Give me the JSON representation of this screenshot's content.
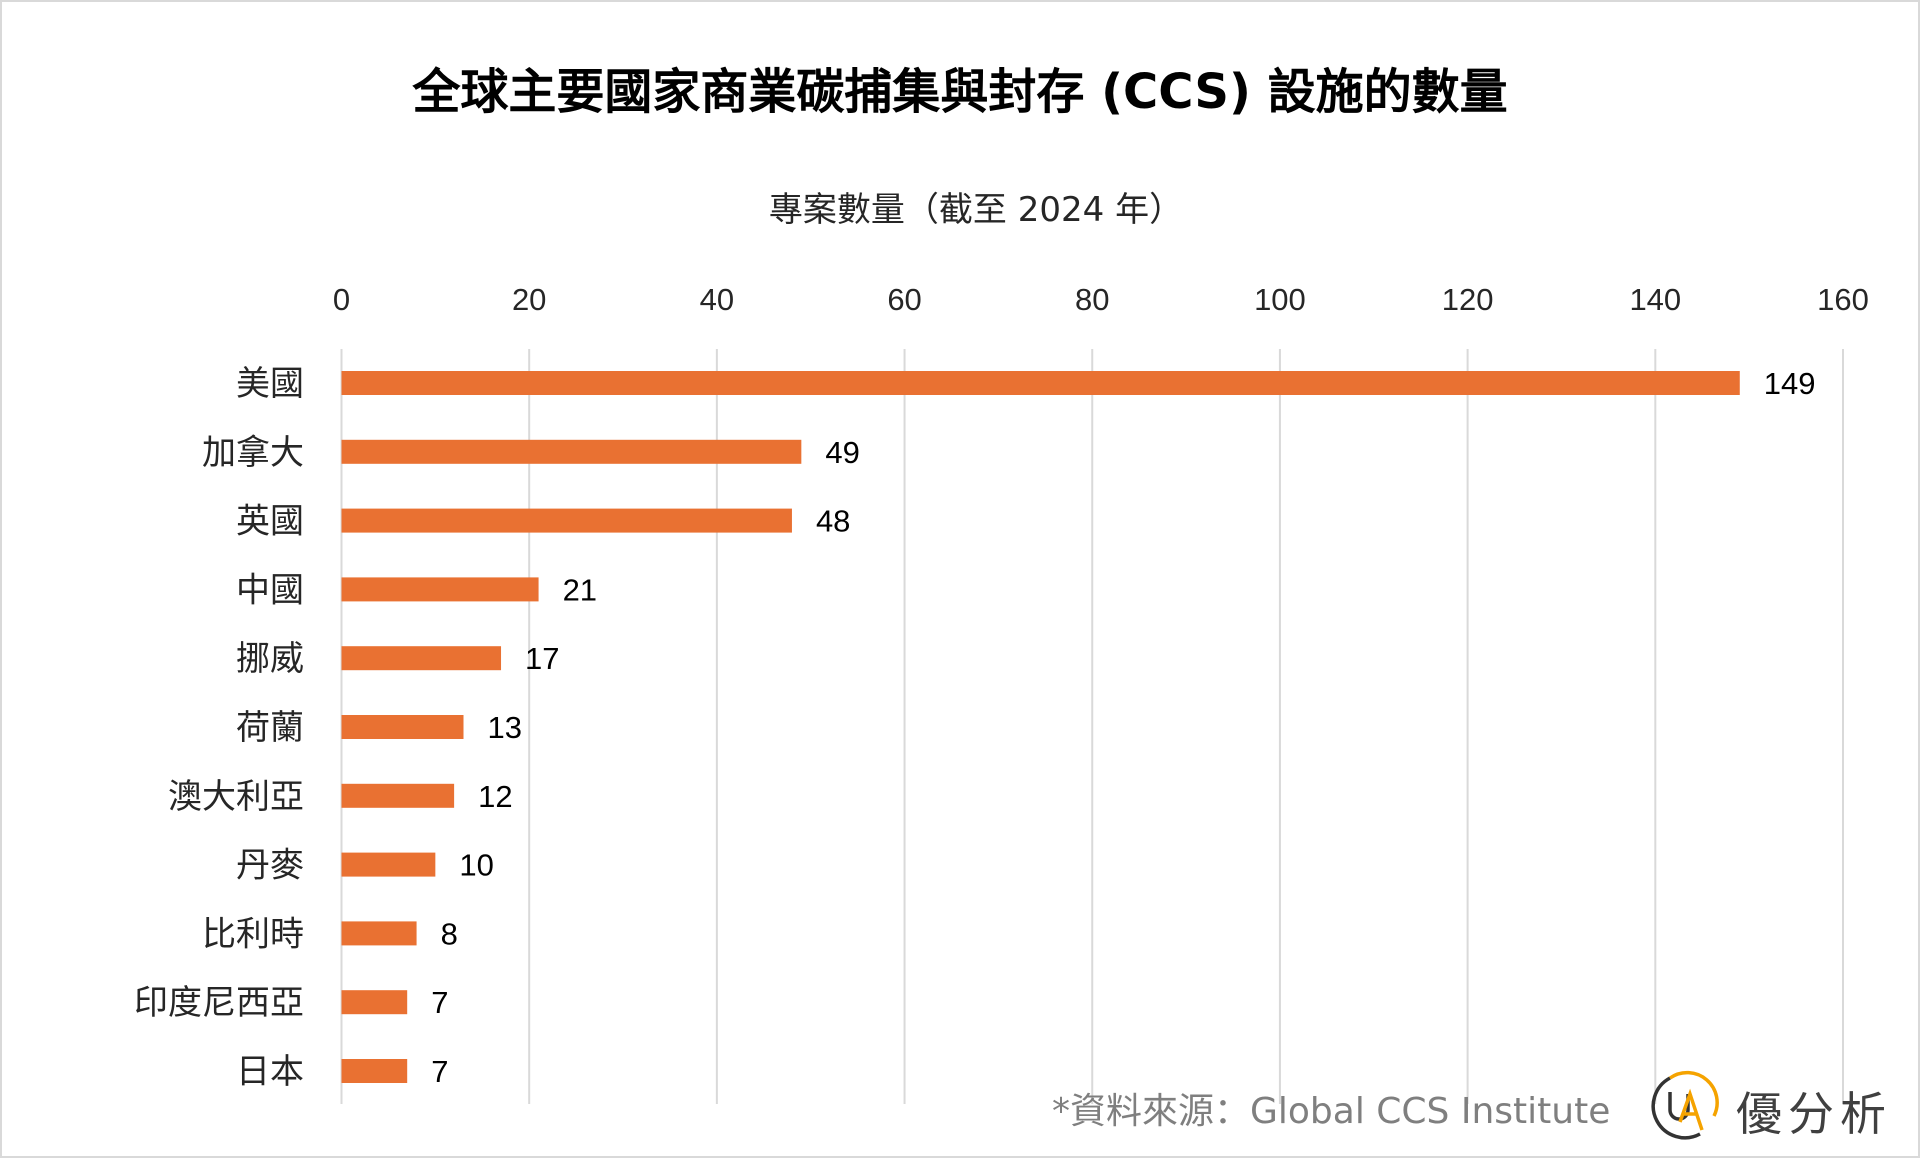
{
  "chart_data": {
    "type": "bar",
    "orientation": "horizontal",
    "title": "全球主要國家商業碳捕集與封存 (CCS) 設施的數量",
    "xlabel": "專案數量（截至 2024 年）",
    "ylabel": "",
    "categories": [
      "美國",
      "加拿大",
      "英國",
      "中國",
      "挪威",
      "荷蘭",
      "澳大利亞",
      "丹麥",
      "比利時",
      "印度尼西亞",
      "日本"
    ],
    "values": [
      149,
      49,
      48,
      21,
      17,
      13,
      12,
      10,
      8,
      7,
      7
    ],
    "xlim": [
      0,
      160
    ],
    "xticks": [
      0,
      20,
      40,
      60,
      80,
      100,
      120,
      140,
      160
    ],
    "grid": true,
    "axis_position": "top",
    "bar_color": "#E97132"
  },
  "footer": {
    "source": "*資料來源：Global CCS Institute",
    "logo_text": "優分析",
    "logo_mark": "UA"
  }
}
